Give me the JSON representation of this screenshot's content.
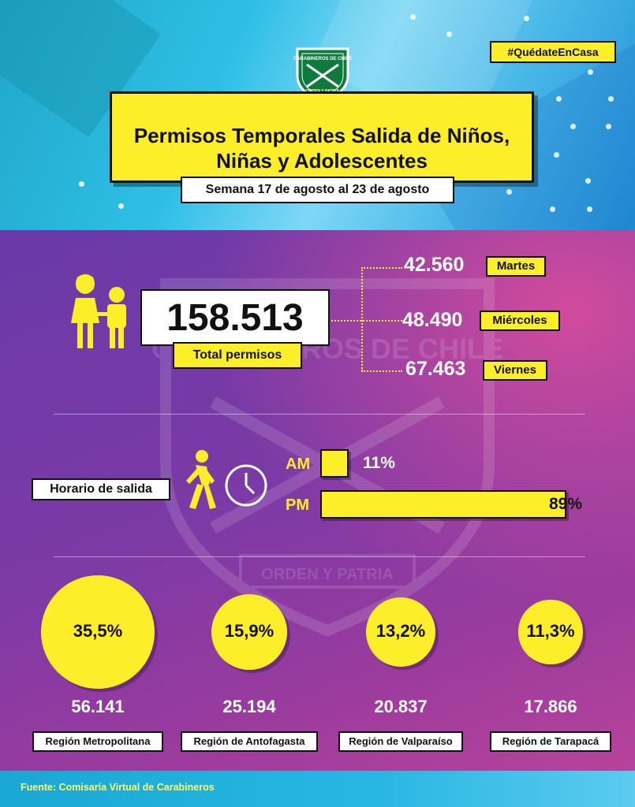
{
  "hashtag": "#QuédateEnCasa",
  "logo": {
    "top_text": "CARABINEROS DE CHILE",
    "bottom_text": "ORDEN Y PATRIA"
  },
  "title": {
    "line1": "Permisos Temporales Salida de Niños,",
    "line2": "Niñas y Adolescentes"
  },
  "week": "Semana 17 de agosto al 23 de agosto",
  "watermark": {
    "top": "CARABINEROS DE CHILE",
    "bottom": "ORDEN Y PATRIA"
  },
  "total": {
    "value": "158.513",
    "label": "Total permisos"
  },
  "days": [
    {
      "value": "42.560",
      "label": "Martes"
    },
    {
      "value": "48.490",
      "label": "Miércoles"
    },
    {
      "value": "67.463",
      "label": "Viernes"
    }
  ],
  "schedule": {
    "label": "Horario de salida",
    "am_label": "AM",
    "pm_label": "PM",
    "am_text": "11%",
    "pm_text": "89%"
  },
  "regions": [
    {
      "pct": "35,5%",
      "count": "56.141",
      "name": "Región Metropolitana"
    },
    {
      "pct": "15,9%",
      "count": "25.194",
      "name": "Región de Antofagasta"
    },
    {
      "pct": "13,2%",
      "count": "20.837",
      "name": "Región de Valparaíso"
    },
    {
      "pct": "11,3%",
      "count": "17.866",
      "name": "Región de Tarapacá"
    }
  ],
  "source": "Fuente: Comisaría Virtual de Carabineros",
  "colors": {
    "accent": "#fcef2a",
    "top_bg": "#2fbfe6",
    "main_bg": "#7b3aa6"
  },
  "chart_data": [
    {
      "type": "bar",
      "categories": [
        "Martes",
        "Miércoles",
        "Viernes"
      ],
      "values": [
        42560,
        48490,
        67463
      ],
      "total": 158513
    },
    {
      "type": "bar",
      "title": "Horario de salida",
      "categories": [
        "AM",
        "PM"
      ],
      "values": [
        11,
        89
      ],
      "ylim": [
        0,
        100
      ]
    },
    {
      "type": "bar",
      "categories": [
        "Región Metropolitana",
        "Región de Antofagasta",
        "Región de Valparaíso",
        "Región de Tarapacá"
      ],
      "series": [
        {
          "values": [
            35.5,
            15.9,
            13.2,
            11.3
          ]
        },
        {
          "values": [
            56141,
            25194,
            20837,
            17866
          ]
        }
      ]
    }
  ]
}
